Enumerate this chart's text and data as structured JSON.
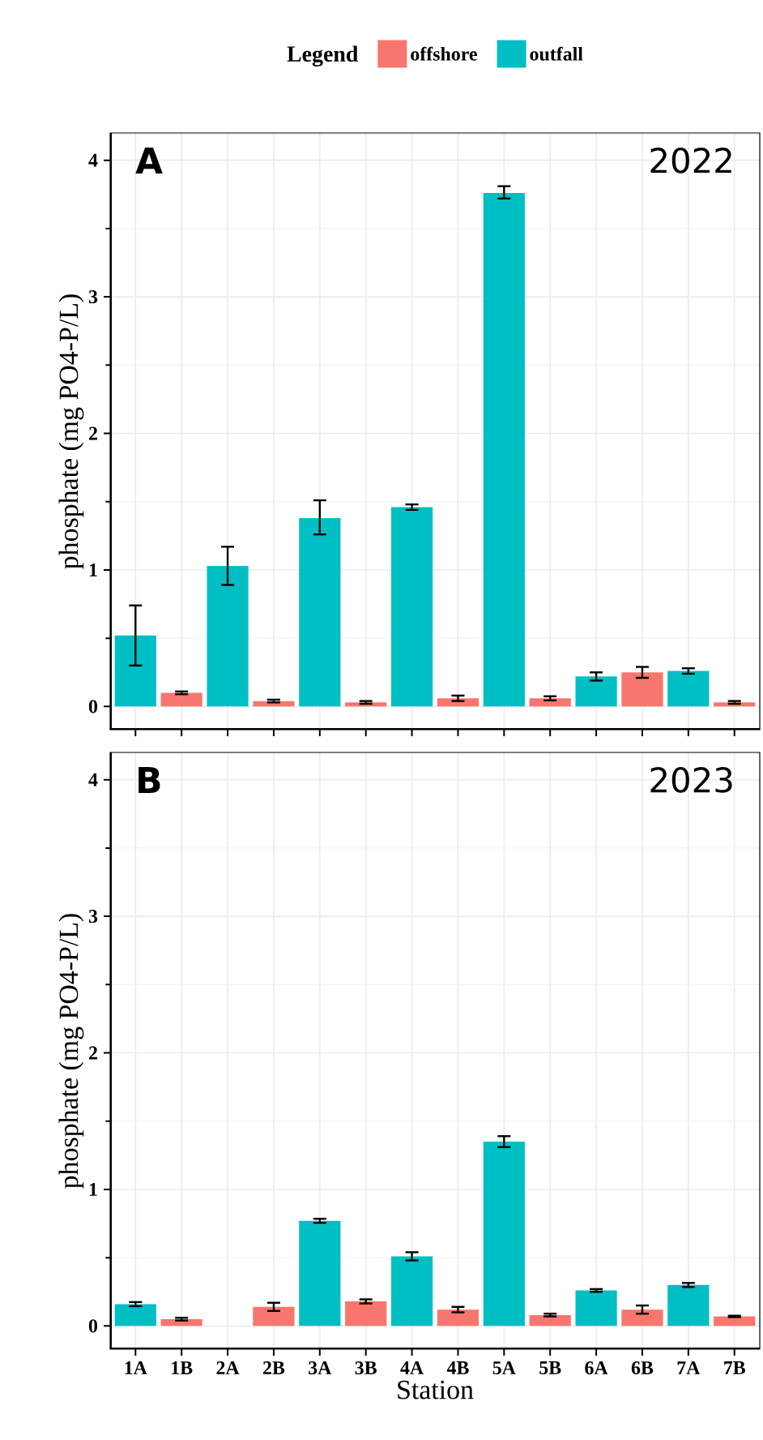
{
  "chart_data": [
    {
      "type": "bar",
      "title": "A",
      "annotations": [
        "2022"
      ],
      "ylabel": "phosphate (mg PO4-P/L)",
      "legend_title": "Legend",
      "legend": "top",
      "grid": true,
      "tick_labels": "y",
      "categories": [
        null,
        null,
        null,
        null,
        null,
        null,
        null,
        null,
        null,
        null,
        null,
        null,
        null,
        null
      ],
      "ylim": [
        -0.17,
        4.2
      ],
      "yticks": [
        0,
        1,
        2,
        3,
        4
      ],
      "series": [
        {
          "name": "offshore",
          "color": "#f8766d",
          "values": [
            null,
            0.1,
            null,
            0.04,
            null,
            0.03,
            null,
            0.06,
            null,
            0.06,
            null,
            0.25,
            null,
            0.03
          ],
          "errors": [
            null,
            0.01,
            null,
            0.01,
            null,
            0.01,
            null,
            0.02,
            null,
            0.015,
            null,
            0.04,
            null,
            0.01
          ]
        },
        {
          "name": "outfall",
          "color": "#00bfc4",
          "values": [
            0.52,
            null,
            1.03,
            null,
            1.38,
            null,
            1.46,
            null,
            3.76,
            null,
            0.22,
            null,
            0.26,
            null
          ],
          "errors": [
            [
              0.3,
              0.74
            ],
            null,
            [
              0.89,
              1.17
            ],
            null,
            [
              1.26,
              1.51
            ],
            null,
            0.02,
            null,
            [
              3.72,
              3.81
            ],
            null,
            0.03,
            null,
            0.02,
            null
          ]
        }
      ]
    },
    {
      "type": "bar",
      "title": "B",
      "annotations": [
        "2023"
      ],
      "ylabel": "phosphate (mg PO4-P/L)",
      "xlabel": "Station",
      "grid": true,
      "categories": [
        "1A",
        "1B",
        "2A",
        "2B",
        "3A",
        "3B",
        "4A",
        "4B",
        "5A",
        "5B",
        "6A",
        "6B",
        "7A",
        "7B"
      ],
      "ylim": [
        -0.17,
        4.2
      ],
      "yticks": [
        0,
        1,
        2,
        3,
        4
      ],
      "series": [
        {
          "color": "#f8766d",
          "values": [
            null,
            0.05,
            null,
            0.14,
            null,
            0.18,
            null,
            0.12,
            null,
            0.08,
            null,
            0.12,
            null,
            0.07
          ],
          "errors": [
            null,
            0.01,
            null,
            0.03,
            null,
            0.015,
            null,
            0.02,
            null,
            0.01,
            null,
            0.03,
            null,
            0.005
          ]
        },
        {
          "color": "#00bfc4",
          "values": [
            0.16,
            null,
            null,
            null,
            0.77,
            null,
            0.51,
            null,
            1.35,
            null,
            0.26,
            null,
            0.3,
            null
          ],
          "errors": [
            0.015,
            null,
            null,
            null,
            0.015,
            null,
            0.03,
            null,
            0.04,
            null,
            0.01,
            null,
            0.015,
            null
          ]
        }
      ]
    }
  ]
}
